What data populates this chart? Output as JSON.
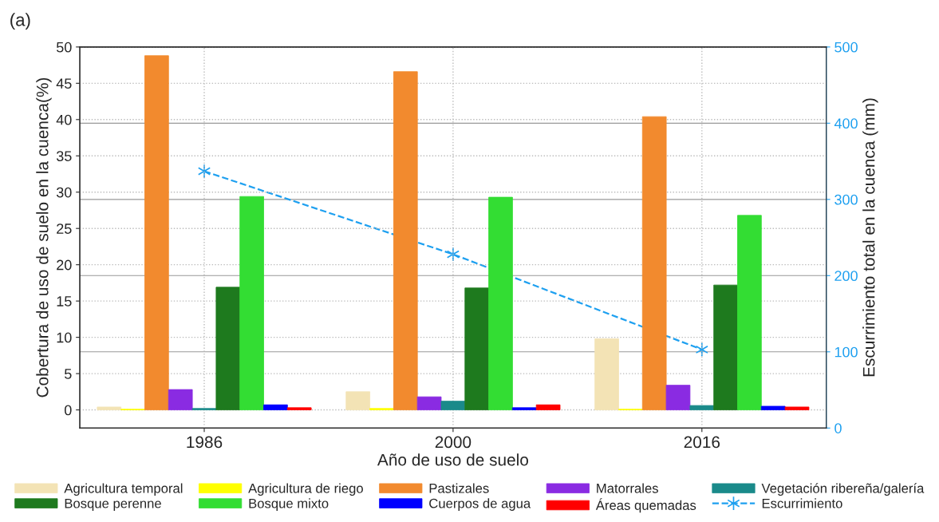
{
  "chart_data": {
    "type": "bar",
    "title": "(a)",
    "xlabel": "Año de uso de suelo",
    "ylabel": "Cobertura de uso de suelo en la cuenca(%)",
    "y2label": "Escurrimiento total en la cuenca (mm)",
    "categories": [
      "1986",
      "2000",
      "2016"
    ],
    "series": [
      {
        "name": "Agricultura temporal",
        "color": "#f3e3b5",
        "values": [
          0.4,
          2.5,
          9.8
        ]
      },
      {
        "name": "Agricultura de riego",
        "color": "#ffff00",
        "values": [
          0.1,
          0.2,
          0.1
        ]
      },
      {
        "name": "Pastizales",
        "color": "#f28a2e",
        "values": [
          48.8,
          46.6,
          40.4
        ]
      },
      {
        "name": "Matorrales",
        "color": "#8a2be2",
        "values": [
          2.8,
          1.8,
          3.4
        ]
      },
      {
        "name": "Vegetación ribereña/galería",
        "color": "#1a8a8a",
        "values": [
          0.2,
          1.2,
          0.6
        ]
      },
      {
        "name": "Bosque perenne",
        "color": "#1e7a1e",
        "values": [
          16.9,
          16.8,
          17.2
        ]
      },
      {
        "name": "Bosque mixto",
        "color": "#33dd33",
        "values": [
          29.4,
          29.3,
          26.8
        ]
      },
      {
        "name": "Cuerpos de agua",
        "color": "#0000ff",
        "values": [
          0.7,
          0.3,
          0.5
        ]
      },
      {
        "name": "Áreas quemadas",
        "color": "#ff0000",
        "values": [
          0.3,
          0.7,
          0.4
        ]
      },
      {
        "name": "Escurrimiento",
        "type": "line",
        "axis": "y2",
        "color": "#1ea0f0",
        "values": [
          337,
          228,
          103
        ],
        "marker": "cross",
        "line_style": "dashed"
      }
    ],
    "ylim": [
      -2.5,
      50
    ],
    "yticks": [
      0,
      5,
      10,
      15,
      20,
      25,
      30,
      35,
      40,
      45,
      50
    ],
    "y2lim": [
      0,
      500
    ],
    "y2ticks": [
      0,
      100,
      200,
      300,
      400,
      500
    ],
    "grid": true,
    "legend": "bottom"
  }
}
